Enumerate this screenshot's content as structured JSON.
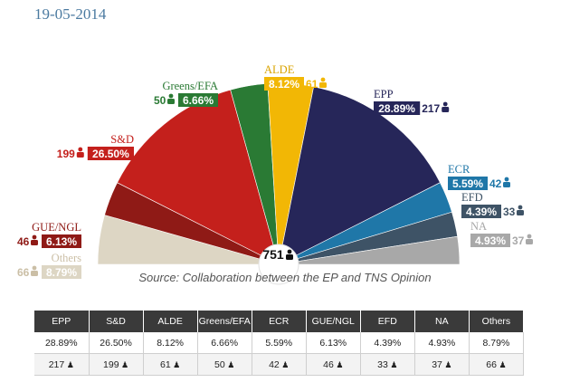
{
  "date": "19-05-2014",
  "source": "Source: Collaboration between the EP and TNS Opinion",
  "total_seats": "751",
  "chart_data": {
    "type": "pie",
    "layout": "hemicycle",
    "total": 751,
    "series": [
      {
        "name": "Others",
        "pct_label": "8.79%",
        "seats_label": "66",
        "pct": 8.79,
        "seats": 66,
        "color": "#ddd6c4",
        "side": "left"
      },
      {
        "name": "GUE/NGL",
        "pct_label": "6.13%",
        "seats_label": "46",
        "pct": 6.13,
        "seats": 46,
        "color": "#8f1a16",
        "side": "left"
      },
      {
        "name": "S&D",
        "pct_label": "26.50%",
        "seats_label": "199",
        "pct": 26.5,
        "seats": 199,
        "color": "#c4201c",
        "side": "left"
      },
      {
        "name": "Greens/EFA",
        "pct_label": "6.66%",
        "seats_label": "50",
        "pct": 6.66,
        "seats": 50,
        "color": "#2a7a34",
        "side": "top"
      },
      {
        "name": "ALDE",
        "pct_label": "8.12%",
        "seats_label": "61",
        "pct": 8.12,
        "seats": 61,
        "color": "#f2b705",
        "side": "top"
      },
      {
        "name": "EPP",
        "pct_label": "28.89%",
        "seats_label": "217",
        "pct": 28.89,
        "seats": 217,
        "color": "#262659",
        "side": "right"
      },
      {
        "name": "ECR",
        "pct_label": "5.59%",
        "seats_label": "42",
        "pct": 5.59,
        "seats": 42,
        "color": "#1f77a8",
        "side": "right"
      },
      {
        "name": "EFD",
        "pct_label": "4.39%",
        "seats_label": "33",
        "pct": 4.39,
        "seats": 33,
        "color": "#3e5366",
        "side": "right"
      },
      {
        "name": "NA",
        "pct_label": "4.93%",
        "seats_label": "37",
        "pct": 4.93,
        "seats": 37,
        "color": "#a8a8a8",
        "side": "right"
      }
    ]
  },
  "table": {
    "headers": [
      "EPP",
      "S&D",
      "ALDE",
      "Greens/EFA",
      "ECR",
      "GUE/NGL",
      "EFD",
      "NA",
      "Others"
    ],
    "percentages": [
      "28.89%",
      "26.50%",
      "8.12%",
      "6.66%",
      "5.59%",
      "6.13%",
      "4.39%",
      "4.93%",
      "8.79%"
    ],
    "seats": [
      "217",
      "199",
      "61",
      "50",
      "42",
      "46",
      "33",
      "37",
      "66"
    ],
    "seat_icon": "person-icon"
  }
}
